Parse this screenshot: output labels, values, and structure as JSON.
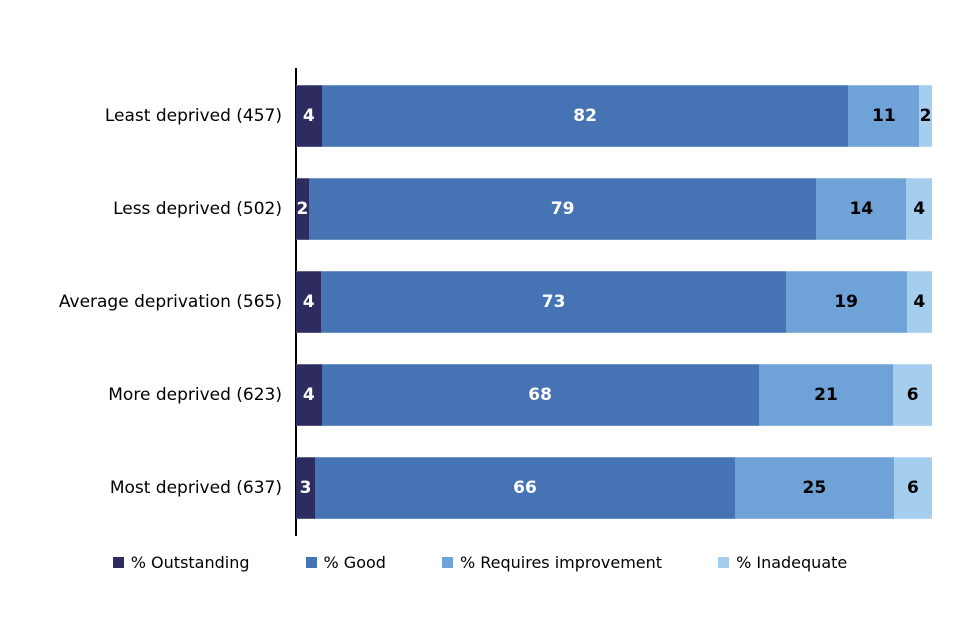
{
  "chart_data": {
    "type": "bar",
    "orientation": "horizontal-stacked",
    "title": "",
    "xlabel": "",
    "ylabel": "",
    "xlim": [
      0,
      100
    ],
    "grid": false,
    "legend_position": "bottom",
    "axis_color": "#000000",
    "background_color": "#ffffff",
    "categories": [
      "Least deprived (457)",
      "Less deprived (502)",
      "Average deprivation (565)",
      "More deprived (623)",
      "Most deprived (637)"
    ],
    "series": [
      {
        "name": "% Outstanding",
        "color": "#2E2C5F",
        "label_color": "#FFFFFF",
        "values": [
          4,
          2,
          4,
          4,
          3
        ]
      },
      {
        "name": "% Good",
        "color": "#4573B4",
        "label_color": "#FFFFFF",
        "values": [
          82,
          79,
          73,
          68,
          66
        ]
      },
      {
        "name": "% Requires improvement",
        "color": "#6FA2D6",
        "label_color": "#000000",
        "values": [
          11,
          14,
          19,
          21,
          25
        ]
      },
      {
        "name": "% Inadequate",
        "color": "#A5CDEE",
        "label_color": "#000000",
        "values": [
          2,
          4,
          4,
          6,
          6
        ]
      }
    ]
  }
}
